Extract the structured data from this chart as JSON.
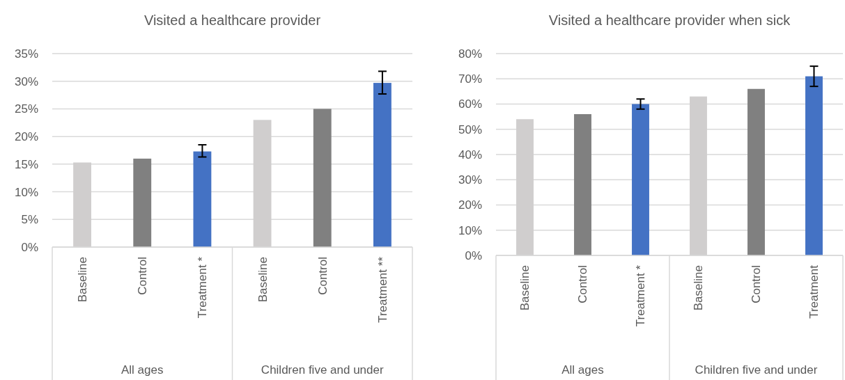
{
  "chart_data": [
    {
      "type": "bar",
      "title": "Visited a healthcare provider",
      "categories": [
        "Baseline",
        "Control",
        "Treatment *",
        "Baseline",
        "Control",
        "Treatment **"
      ],
      "values": [
        15.3,
        16,
        17.3,
        23,
        25,
        29.7
      ],
      "colors": [
        "#d0cece",
        "#808080",
        "#4472c4",
        "#d0cece",
        "#808080",
        "#4472c4"
      ],
      "errors": [
        null,
        null,
        [
          16.3,
          18.5
        ],
        null,
        null,
        [
          27.7,
          31.8
        ]
      ],
      "annotations": [
        "All ages",
        "Children five and under"
      ],
      "ylim": [
        0,
        35
      ],
      "yticks": [
        {
          "value": 0,
          "label": "0%"
        },
        {
          "value": 5,
          "label": "5%"
        },
        {
          "value": 10,
          "label": "10%"
        },
        {
          "value": 15,
          "label": "15%"
        },
        {
          "value": 20,
          "label": "20%"
        },
        {
          "value": 25,
          "label": "25%"
        },
        {
          "value": 30,
          "label": "30%"
        },
        {
          "value": 35,
          "label": "35%"
        }
      ],
      "grid": "y"
    },
    {
      "type": "bar",
      "title": "Visited a healthcare provider when sick",
      "categories": [
        "Baseline",
        "Control",
        "Treatment *",
        "Baseline",
        "Control",
        "Treatment"
      ],
      "values": [
        54,
        56,
        60,
        63,
        66,
        71
      ],
      "colors": [
        "#d0cece",
        "#808080",
        "#4472c4",
        "#d0cece",
        "#808080",
        "#4472c4"
      ],
      "errors": [
        null,
        null,
        [
          58,
          62
        ],
        null,
        null,
        [
          67,
          75
        ]
      ],
      "annotations": [
        "All ages",
        "Children five and under"
      ],
      "ylim": [
        0,
        80
      ],
      "yticks": [
        {
          "value": 0,
          "label": "0%"
        },
        {
          "value": 10,
          "label": "10%"
        },
        {
          "value": 20,
          "label": "20%"
        },
        {
          "value": 30,
          "label": "30%"
        },
        {
          "value": 40,
          "label": "40%"
        },
        {
          "value": 50,
          "label": "50%"
        },
        {
          "value": 60,
          "label": "60%"
        },
        {
          "value": 70,
          "label": "70%"
        },
        {
          "value": 80,
          "label": "80%"
        }
      ],
      "grid": "y"
    }
  ]
}
